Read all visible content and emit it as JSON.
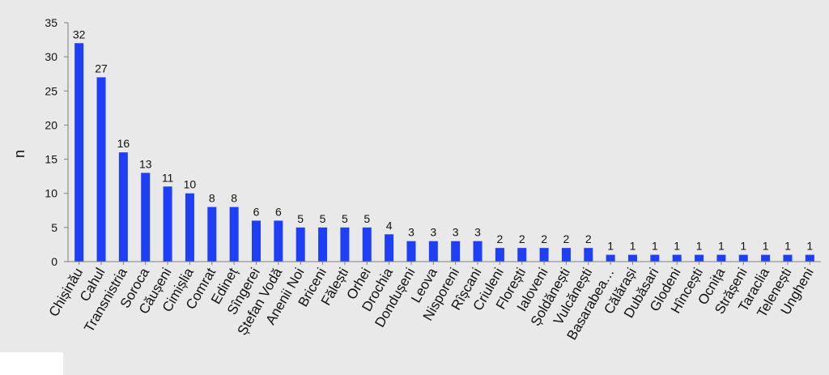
{
  "chart_data": {
    "type": "bar",
    "categories": [
      "Chișinău",
      "Cahul",
      "Transnistria",
      "Soroca",
      "Căușeni",
      "Cimișlia",
      "Comrat",
      "Edineț",
      "Sîngerei",
      "Ștefan Vodă",
      "Anenii Noi",
      "Briceni",
      "Fălești",
      "Orhei",
      "Drochia",
      "Dondușeni",
      "Leova",
      "Nisporeni",
      "Rîșcani",
      "Criuleni",
      "Florești",
      "Ialoveni",
      "Șoldănești",
      "Vulcănești",
      "Basarabea…",
      "Călărași",
      "Dubăsari",
      "Glodeni",
      "Hîncești",
      "Ocnița",
      "Strășeni",
      "Taraclia",
      "Telenești",
      "Ungheni"
    ],
    "values": [
      32,
      27,
      16,
      13,
      11,
      10,
      8,
      8,
      6,
      6,
      5,
      5,
      5,
      5,
      4,
      3,
      3,
      3,
      3,
      2,
      2,
      2,
      2,
      2,
      1,
      1,
      1,
      1,
      1,
      1,
      1,
      1,
      1,
      1
    ],
    "ylabel": "n",
    "ylim": [
      0,
      35
    ],
    "yticks": [
      0,
      5,
      10,
      15,
      20,
      25,
      30,
      35
    ],
    "grid": false,
    "data_labels": true,
    "colors": {
      "bar": "#1f3ff5",
      "background": "#e9e9e9",
      "text": "#111111",
      "axis": "#7f7f7f"
    }
  }
}
